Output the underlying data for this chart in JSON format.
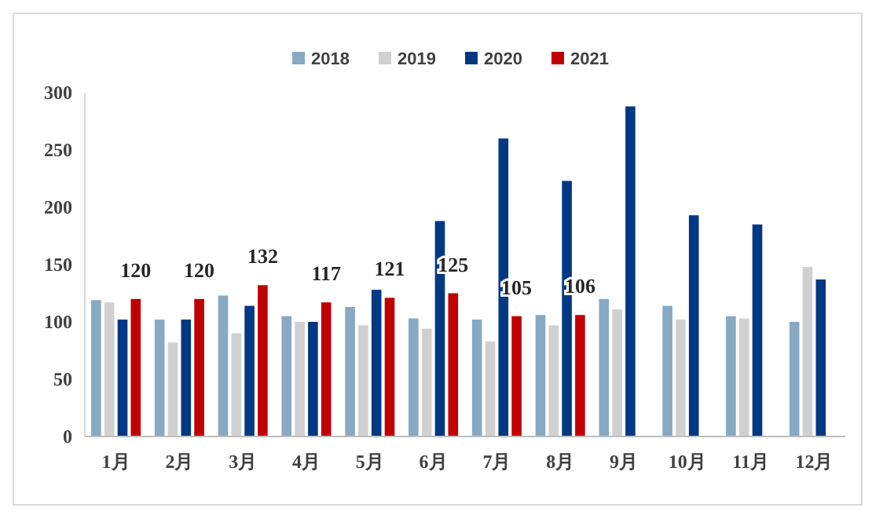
{
  "chart_data": {
    "type": "bar",
    "categories": [
      "1月",
      "2月",
      "3月",
      "4月",
      "5月",
      "6月",
      "7月",
      "8月",
      "9月",
      "10月",
      "11月",
      "12月"
    ],
    "series": [
      {
        "name": "2018",
        "color": "#87a9c4",
        "values": [
          119,
          102,
          123,
          105,
          113,
          103,
          102,
          106,
          120,
          114,
          105,
          100
        ]
      },
      {
        "name": "2019",
        "color": "#d0d0d0",
        "values": [
          117,
          82,
          90,
          100,
          97,
          94,
          83,
          97,
          111,
          102,
          103,
          148
        ]
      },
      {
        "name": "2020",
        "color": "#003883",
        "values": [
          102,
          102,
          114,
          100,
          128,
          188,
          260,
          223,
          288,
          193,
          185,
          137
        ]
      },
      {
        "name": "2021",
        "color": "#c00000",
        "values": [
          120,
          120,
          132,
          117,
          121,
          125,
          105,
          106,
          null,
          null,
          null,
          null
        ],
        "value_labels": [
          "120",
          "120",
          "132",
          "117",
          "121",
          "125",
          "105",
          "106",
          null,
          null,
          null,
          null
        ]
      }
    ],
    "ylim": [
      0,
      300
    ],
    "yticks": [
      0,
      50,
      100,
      150,
      200,
      250,
      300
    ],
    "grid": false,
    "legend": "top"
  }
}
